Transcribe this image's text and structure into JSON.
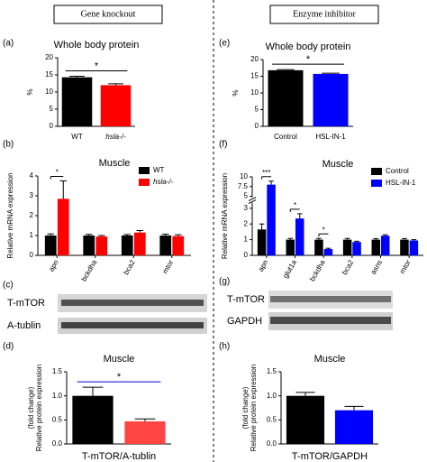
{
  "headers": [
    "Gene knockout",
    "Enzyme inhibitor"
  ],
  "panel_labels": [
    "(a)",
    "(b)",
    "(c)",
    "(d)",
    "(e)",
    "(f)",
    "(g)",
    "(h)"
  ],
  "blots": [
    {
      "labels": [
        "T-mTOR",
        "A-tublin"
      ]
    },
    {
      "labels": [
        "T-mTOR",
        "GAPDH"
      ]
    }
  ],
  "chart_data": [
    {
      "type": "bar",
      "title": "Whole body protein",
      "ylabel": [
        "%"
      ],
      "categories": [
        "WT",
        "hsla-/-"
      ],
      "values": [
        14.3,
        12.0
      ],
      "errors": [
        0.3,
        0.4
      ],
      "colors": [
        "#000000",
        "#ff0000"
      ],
      "ylim": [
        0,
        20
      ],
      "yticks": [
        0,
        5,
        10,
        15,
        20
      ],
      "significance": "*"
    },
    {
      "type": "grouped_bar",
      "title": "Muscle",
      "ylabel": [
        "Relative mRNA expression"
      ],
      "categories": [
        "apn",
        "bckdha",
        "bca2",
        "mtor"
      ],
      "series": [
        {
          "name": "WT",
          "color": "#000000",
          "values": [
            1.0,
            1.0,
            1.0,
            1.0
          ],
          "errors": [
            0.08,
            0.06,
            0.05,
            0.07
          ]
        },
        {
          "name": "hsla-/-",
          "color": "#ff0000",
          "values": [
            2.85,
            0.95,
            1.15,
            0.97
          ],
          "errors": [
            0.9,
            0.05,
            0.1,
            0.07
          ]
        }
      ],
      "ylim": [
        0,
        4
      ],
      "yticks": [
        0,
        1,
        2,
        3,
        4
      ],
      "significance": [
        "*",
        null,
        null,
        null
      ],
      "legend": "upper right"
    },
    {
      "type": "bar",
      "title": "Muscle",
      "ylabel": [
        "Relative protein expression",
        "(fold change)"
      ],
      "xlabel": "T-mTOR/A-tublin",
      "categories": [
        null,
        null
      ],
      "values": [
        1.0,
        0.47
      ],
      "errors": [
        0.18,
        0.05
      ],
      "colors": [
        "#000000",
        "#ff4444"
      ],
      "ylim": [
        0,
        1.5
      ],
      "yticks": [
        {
          "value": 0,
          "label": "0.0"
        },
        {
          "value": 0.5,
          "label": "0.5"
        },
        {
          "value": 1,
          "label": "1.0"
        },
        {
          "value": 1.5,
          "label": "1.5"
        }
      ],
      "significance": "*"
    },
    {
      "type": "bar",
      "title": "Whole body protein",
      "ylabel": [
        "%"
      ],
      "categories": [
        "Control",
        "HSL-IN-1"
      ],
      "values": [
        16.8,
        15.7
      ],
      "errors": [
        0.2,
        0.2
      ],
      "colors": [
        "#000000",
        "#0000ff"
      ],
      "ylim": [
        0,
        20
      ],
      "yticks": [
        0,
        5,
        10,
        15,
        20
      ],
      "significance": "*"
    },
    {
      "type": "grouped_bar",
      "title": "Muscle",
      "ylabel": [
        "Relative mRNA expression"
      ],
      "categories": [
        "apn",
        "glut1a",
        "bckdha",
        "bca2",
        "asns",
        "mtor"
      ],
      "series": [
        {
          "name": "Control",
          "color": "#000000",
          "values": [
            1.65,
            1.0,
            1.0,
            1.0,
            1.0,
            1.0
          ],
          "errors": [
            0.35,
            0.08,
            0.08,
            0.08,
            0.06,
            0.07
          ]
        },
        {
          "name": "HSL-IN-1",
          "color": "#0000ff",
          "values": [
            8.0,
            2.35,
            0.4,
            0.85,
            1.25,
            0.95
          ],
          "errors": [
            0.9,
            0.3,
            0.05,
            0.05,
            0.06,
            0.05
          ]
        }
      ],
      "ylim": [
        0,
        10
      ],
      "ybreak": [
        3.3,
        5
      ],
      "yticks": [
        0,
        1,
        2,
        3,
        5,
        7.5,
        10
      ],
      "significance": [
        "***",
        "*",
        "*",
        null,
        null,
        null
      ],
      "legend": "upper right"
    },
    {
      "type": "bar",
      "title": "Muscle",
      "ylabel": [
        "Relative protein expression",
        "(fold change)"
      ],
      "xlabel": "T-mTOR/GAPDH",
      "categories": [
        null,
        null
      ],
      "values": [
        1.0,
        0.7
      ],
      "errors": [
        0.07,
        0.08
      ],
      "colors": [
        "#000000",
        "#0000ff"
      ],
      "ylim": [
        0,
        1.5
      ],
      "yticks": [
        {
          "value": 0,
          "label": "0.0"
        },
        {
          "value": 0.5,
          "label": "0.5"
        },
        {
          "value": 1,
          "label": "1.0"
        },
        {
          "value": 1.5,
          "label": "1.5"
        }
      ]
    }
  ]
}
